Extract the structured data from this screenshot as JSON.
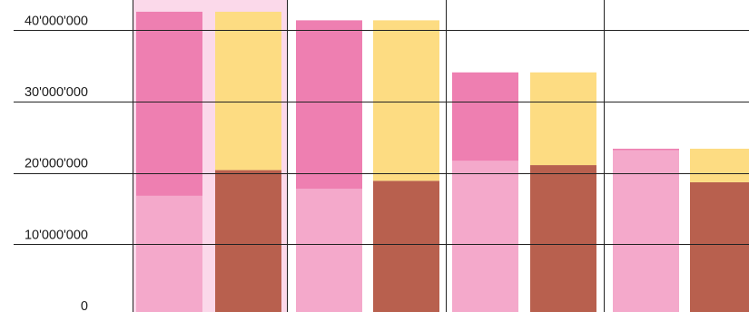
{
  "chart_data": {
    "type": "bar",
    "title": "",
    "xlabel": "",
    "ylabel": "",
    "ylim": [
      0,
      44000000
    ],
    "y_ticks": [
      {
        "value": 0,
        "label": "0"
      },
      {
        "value": 10000000,
        "label": "10'000'000"
      },
      {
        "value": 20000000,
        "label": "20'000'000"
      },
      {
        "value": 30000000,
        "label": "30'000'000"
      },
      {
        "value": 40000000,
        "label": "40'000'000"
      }
    ],
    "grid": true,
    "highlighted_group": 0,
    "groups": [
      {
        "bars": [
          {
            "segments": [
              {
                "value": 16800000,
                "color": "#f4a9cb"
              },
              {
                "value": 25800000,
                "color": "#ee7fb1"
              }
            ]
          },
          {
            "segments": [
              {
                "value": 20400000,
                "color": "#b8604e"
              },
              {
                "value": 22200000,
                "color": "#fddc82"
              }
            ]
          }
        ]
      },
      {
        "bars": [
          {
            "segments": [
              {
                "value": 17800000,
                "color": "#f4a9cb"
              },
              {
                "value": 23600000,
                "color": "#ee7fb1"
              }
            ]
          },
          {
            "segments": [
              {
                "value": 18900000,
                "color": "#b8604e"
              },
              {
                "value": 22500000,
                "color": "#fddc82"
              }
            ]
          }
        ]
      },
      {
        "bars": [
          {
            "segments": [
              {
                "value": 21700000,
                "color": "#f4a9cb"
              },
              {
                "value": 12400000,
                "color": "#ee7fb1"
              }
            ]
          },
          {
            "segments": [
              {
                "value": 21100000,
                "color": "#b8604e"
              },
              {
                "value": 13000000,
                "color": "#fddc82"
              }
            ]
          }
        ]
      },
      {
        "bars": [
          {
            "segments": [
              {
                "value": 23200000,
                "color": "#f4a9cb"
              },
              {
                "value": 200000,
                "color": "#ee7fb1"
              }
            ]
          },
          {
            "segments": [
              {
                "value": 18700000,
                "color": "#b8604e"
              },
              {
                "value": 4700000,
                "color": "#fddc82"
              }
            ]
          }
        ]
      }
    ],
    "colors": {
      "highlight_band": "#fbd9ea",
      "grid": "#222222",
      "divider": "#222222"
    }
  }
}
